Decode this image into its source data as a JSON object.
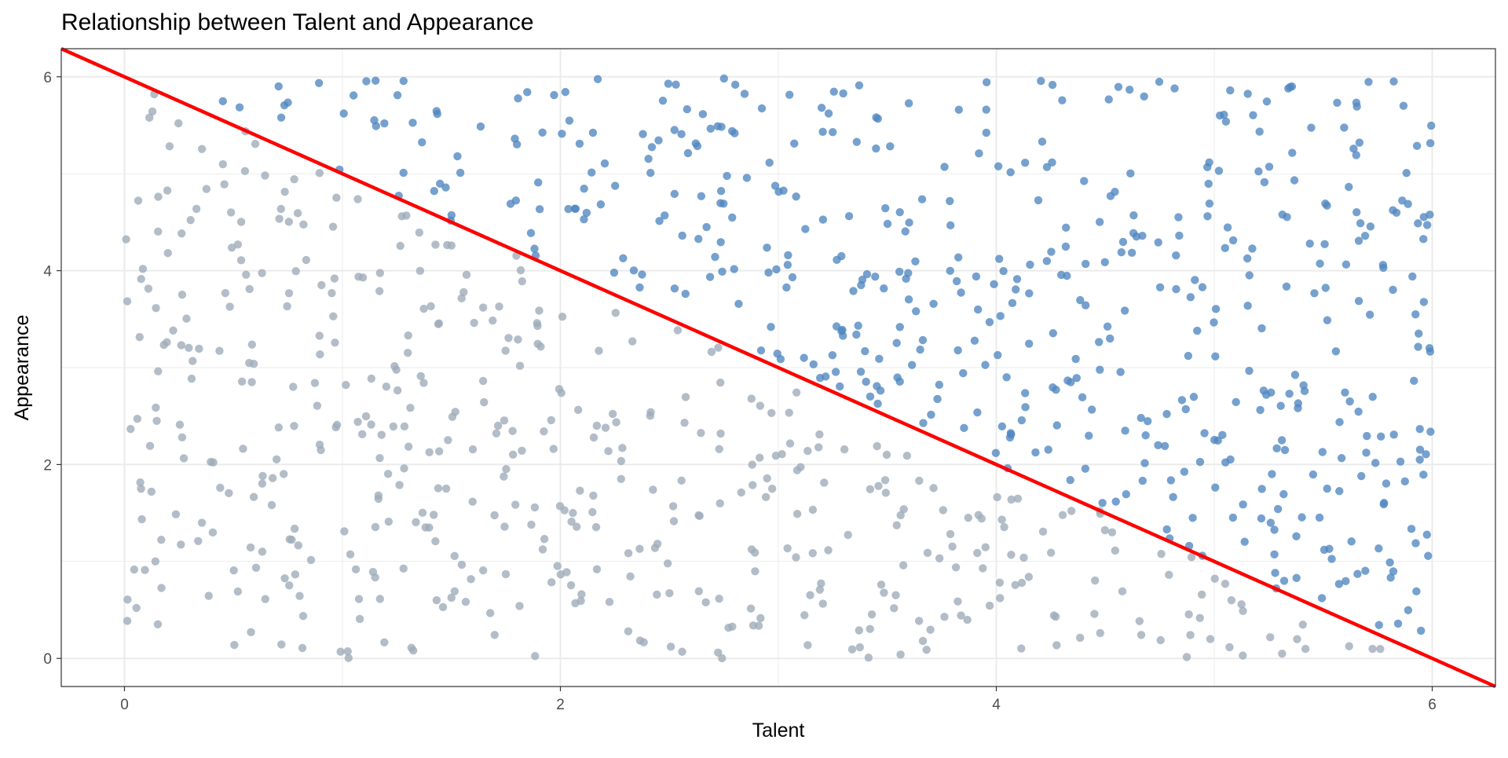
{
  "chart_data": {
    "type": "scatter",
    "title": "Relationship between Talent and Appearance",
    "xlabel": "Talent",
    "ylabel": "Appearance",
    "xlim": [
      -0.29,
      6.29
    ],
    "ylim": [
      -0.29,
      6.29
    ],
    "x_ticks": [
      0,
      2,
      4,
      6
    ],
    "y_ticks": [
      0,
      2,
      4,
      6
    ],
    "grid": true,
    "legend": "none",
    "reference_line": {
      "description": "Talent + Appearance = 6",
      "intercept": 6,
      "slope": -1,
      "color": "#ff0000"
    },
    "colors": {
      "above_line": "#4f87c0",
      "below_line": "#9eabb8"
    },
    "point_count_estimate": 1000,
    "points_generated_uniformly_over": [
      [
        0,
        6
      ],
      [
        0,
        6
      ]
    ],
    "series": [
      {
        "rule": "talent + appearance > 6",
        "color": "#4f87c0"
      },
      {
        "rule": "talent + appearance <= 6",
        "color": "#9eabb8"
      }
    ]
  }
}
